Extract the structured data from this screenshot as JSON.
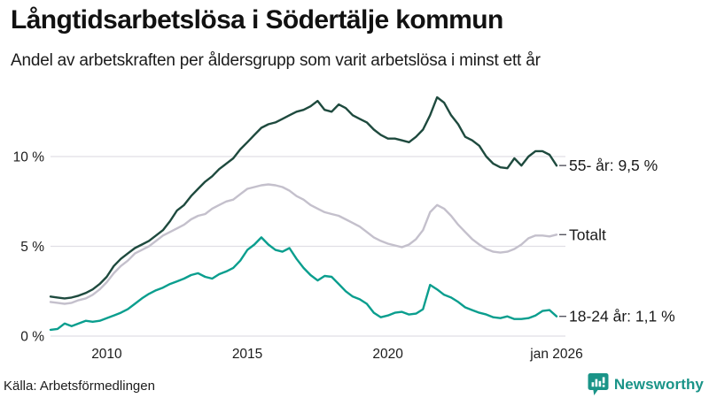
{
  "header": {
    "title": "Långtidsarbetslösa i Södertälje kommun",
    "subtitle": "Andel av arbetskraften per åldersgrupp som varit arbetslösa i minst ett år"
  },
  "footer": {
    "source": "Källa: Arbetsförmedlingen",
    "brand": "Newsworthy",
    "brand_icon": "bar-chart-speech-bubble-icon",
    "brand_color": "#1a9488"
  },
  "colors": {
    "background": "#ffffff",
    "grid": "#e0dfe5",
    "axis_text": "#1c1c1c",
    "end_label_text": "#1a1a1a",
    "end_label_dash": "#55555f"
  },
  "chart_data": {
    "type": "line",
    "title": "Långtidsarbetslösa i Södertälje kommun",
    "subtitle": "Andel av arbetskraften per åldersgrupp som varit arbetslösa i minst ett år",
    "unit": "%",
    "x_start": 2008,
    "x_step": 0.25,
    "x_end": 2026,
    "ylim": [
      0,
      13.8
    ],
    "grid": "horizontal",
    "legend_position": "line-end-labels",
    "y_ticks": [
      {
        "v": 0,
        "label": "0 %"
      },
      {
        "v": 5,
        "label": "5 %"
      },
      {
        "v": 10,
        "label": "10 %"
      }
    ],
    "x_ticks": [
      {
        "t": 2010,
        "label": "2010"
      },
      {
        "t": 2015,
        "label": "2015"
      },
      {
        "t": 2020,
        "label": "2020"
      },
      {
        "t": 2026,
        "label": "jan 2026"
      }
    ],
    "series": [
      {
        "name": "55- år",
        "end_label": "55- år: 9,5 %",
        "end_value_text": "9,5 %",
        "color": "#1e4a3e",
        "values": [
          2.2,
          2.15,
          2.1,
          2.15,
          2.25,
          2.4,
          2.6,
          2.9,
          3.3,
          3.9,
          4.3,
          4.6,
          4.9,
          5.1,
          5.3,
          5.6,
          5.9,
          6.4,
          7.0,
          7.3,
          7.8,
          8.2,
          8.6,
          8.9,
          9.3,
          9.6,
          9.9,
          10.4,
          10.8,
          11.2,
          11.6,
          11.8,
          11.9,
          12.1,
          12.3,
          12.5,
          12.6,
          12.8,
          13.1,
          12.6,
          12.5,
          12.9,
          12.7,
          12.3,
          12.1,
          11.9,
          11.5,
          11.2,
          11.0,
          11.0,
          10.9,
          10.8,
          11.1,
          11.5,
          12.3,
          13.3,
          13.0,
          12.3,
          11.8,
          11.1,
          10.9,
          10.6,
          10.0,
          9.6,
          9.4,
          9.35,
          9.9,
          9.5,
          10.0,
          10.3,
          10.3,
          10.1,
          9.5
        ]
      },
      {
        "name": "Totalt",
        "end_label": "Totalt",
        "end_value_text": "",
        "color": "#c4c0cc",
        "values": [
          1.9,
          1.85,
          1.8,
          1.85,
          2.0,
          2.1,
          2.3,
          2.6,
          3.0,
          3.5,
          3.9,
          4.2,
          4.6,
          4.8,
          5.0,
          5.3,
          5.6,
          5.8,
          6.0,
          6.2,
          6.5,
          6.7,
          6.8,
          7.1,
          7.3,
          7.5,
          7.6,
          7.9,
          8.2,
          8.3,
          8.4,
          8.45,
          8.4,
          8.3,
          8.1,
          7.8,
          7.6,
          7.3,
          7.1,
          6.9,
          6.8,
          6.7,
          6.5,
          6.3,
          6.1,
          5.8,
          5.5,
          5.3,
          5.15,
          5.05,
          4.95,
          5.1,
          5.4,
          5.9,
          6.9,
          7.3,
          7.1,
          6.7,
          6.2,
          5.8,
          5.4,
          5.1,
          4.85,
          4.7,
          4.65,
          4.7,
          4.85,
          5.1,
          5.45,
          5.6,
          5.6,
          5.55,
          5.65
        ]
      },
      {
        "name": "18-24 år",
        "end_label": "18-24 år: 1,1 %",
        "end_value_text": "1,1 %",
        "color": "#0a9e8e",
        "values": [
          0.35,
          0.4,
          0.7,
          0.55,
          0.7,
          0.85,
          0.8,
          0.85,
          1.0,
          1.15,
          1.3,
          1.5,
          1.8,
          2.1,
          2.35,
          2.55,
          2.7,
          2.9,
          3.05,
          3.2,
          3.4,
          3.5,
          3.3,
          3.2,
          3.45,
          3.6,
          3.8,
          4.2,
          4.8,
          5.1,
          5.5,
          5.1,
          4.8,
          4.7,
          4.9,
          4.3,
          3.8,
          3.4,
          3.1,
          3.35,
          3.3,
          2.9,
          2.5,
          2.2,
          2.05,
          1.8,
          1.3,
          1.05,
          1.15,
          1.3,
          1.35,
          1.2,
          1.25,
          1.5,
          2.85,
          2.6,
          2.3,
          2.15,
          1.9,
          1.6,
          1.45,
          1.3,
          1.2,
          1.05,
          1.0,
          1.1,
          0.95,
          0.95,
          1.0,
          1.15,
          1.4,
          1.45,
          1.1
        ]
      }
    ]
  }
}
